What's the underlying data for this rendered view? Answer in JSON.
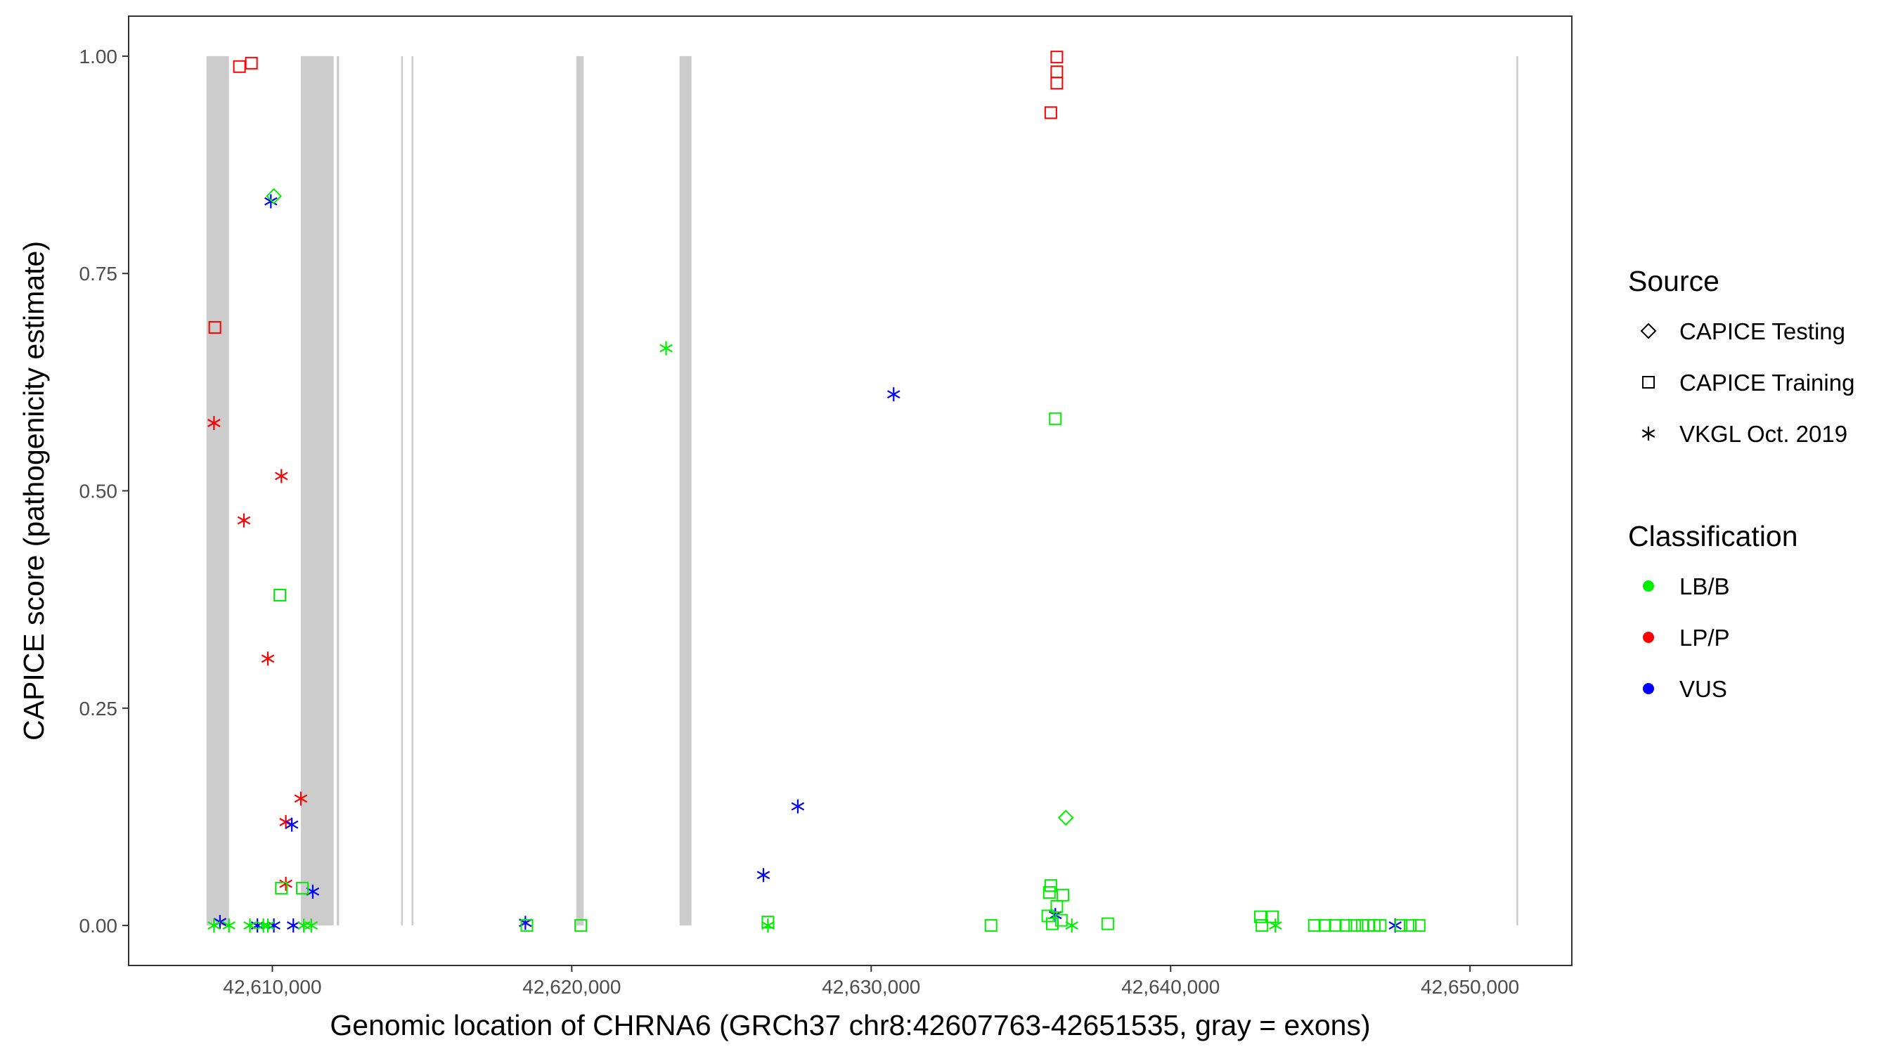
{
  "chart_data": {
    "type": "scatter",
    "xlabel": "Genomic location of CHRNA6 (GRCh37 chr8:42607763-42651535, gray = exons)",
    "ylabel": "CAPICE score (pathogenicity estimate)",
    "xlim": [
      42605200,
      42653400
    ],
    "ylim": [
      -0.046,
      1.046
    ],
    "x_ticks": [
      42610000,
      42620000,
      42630000,
      42640000,
      42650000
    ],
    "x_tick_labels": [
      "42,610,000",
      "42,620,000",
      "42,630,000",
      "42,640,000",
      "42,650,000"
    ],
    "y_ticks": [
      0,
      0.25,
      0.5,
      0.75,
      1
    ],
    "y_tick_labels": [
      "0.00",
      "0.25",
      "0.50",
      "0.75",
      "1.00"
    ],
    "grid": false,
    "exons": [
      [
        42607800,
        42608550
      ],
      [
        42610950,
        42612050
      ],
      [
        42612150,
        42612230
      ],
      [
        42614300,
        42614360
      ],
      [
        42614650,
        42614710
      ],
      [
        42620150,
        42620400
      ],
      [
        42623600,
        42624000
      ],
      [
        42651550,
        42651610
      ]
    ],
    "legends": [
      {
        "title": "Source",
        "placement": "right",
        "entries": [
          {
            "label": "CAPICE Testing",
            "shape": "diamond"
          },
          {
            "label": "CAPICE Training",
            "shape": "square"
          },
          {
            "label": "VKGL Oct. 2019",
            "shape": "asterisk"
          }
        ]
      },
      {
        "title": "Classification",
        "placement": "right",
        "entries": [
          {
            "label": "LB/B",
            "color": "#00ee00"
          },
          {
            "label": "LP/P",
            "color": "#ff0000"
          },
          {
            "label": "VUS",
            "color": "#0000ff"
          }
        ]
      }
    ],
    "colors": {
      "LB/B": "#00ee00",
      "LP/P": "#ff0000",
      "VUS": "#0000ff"
    },
    "points": [
      {
        "x": 42608900,
        "y": 0.988,
        "source": "CAPICE Training",
        "class": "LP/P"
      },
      {
        "x": 42609300,
        "y": 0.992,
        "source": "CAPICE Training",
        "class": "LP/P"
      },
      {
        "x": 42608080,
        "y": 0.688,
        "source": "CAPICE Training",
        "class": "LP/P"
      },
      {
        "x": 42636200,
        "y": 0.999,
        "source": "CAPICE Training",
        "class": "LP/P"
      },
      {
        "x": 42636200,
        "y": 0.982,
        "source": "CAPICE Training",
        "class": "LP/P"
      },
      {
        "x": 42636200,
        "y": 0.969,
        "source": "CAPICE Training",
        "class": "LP/P"
      },
      {
        "x": 42636000,
        "y": 0.935,
        "source": "CAPICE Training",
        "class": "LP/P"
      },
      {
        "x": 42608050,
        "y": 0.578,
        "source": "VKGL Oct. 2019",
        "class": "LP/P"
      },
      {
        "x": 42610300,
        "y": 0.517,
        "source": "VKGL Oct. 2019",
        "class": "LP/P"
      },
      {
        "x": 42609050,
        "y": 0.466,
        "source": "VKGL Oct. 2019",
        "class": "LP/P"
      },
      {
        "x": 42609850,
        "y": 0.307,
        "source": "VKGL Oct. 2019",
        "class": "LP/P"
      },
      {
        "x": 42610950,
        "y": 0.146,
        "source": "VKGL Oct. 2019",
        "class": "LP/P"
      },
      {
        "x": 42610450,
        "y": 0.119,
        "source": "VKGL Oct. 2019",
        "class": "LP/P"
      },
      {
        "x": 42610450,
        "y": 0.048,
        "source": "VKGL Oct. 2019",
        "class": "LP/P"
      },
      {
        "x": 42609950,
        "y": 0.833,
        "source": "VKGL Oct. 2019",
        "class": "VUS"
      },
      {
        "x": 42630750,
        "y": 0.611,
        "source": "VKGL Oct. 2019",
        "class": "VUS"
      },
      {
        "x": 42627550,
        "y": 0.137,
        "source": "VKGL Oct. 2019",
        "class": "VUS"
      },
      {
        "x": 42610650,
        "y": 0.116,
        "source": "VKGL Oct. 2019",
        "class": "VUS"
      },
      {
        "x": 42626400,
        "y": 0.058,
        "source": "VKGL Oct. 2019",
        "class": "VUS"
      },
      {
        "x": 42611350,
        "y": 0.039,
        "source": "VKGL Oct. 2019",
        "class": "VUS"
      },
      {
        "x": 42636150,
        "y": 0.012,
        "source": "VKGL Oct. 2019",
        "class": "VUS"
      },
      {
        "x": 42608250,
        "y": 0.004,
        "source": "VKGL Oct. 2019",
        "class": "VUS"
      },
      {
        "x": 42618450,
        "y": 0.003,
        "source": "VKGL Oct. 2019",
        "class": "VUS"
      },
      {
        "x": 42609500,
        "y": 0.0,
        "source": "VKGL Oct. 2019",
        "class": "VUS"
      },
      {
        "x": 42610050,
        "y": 0.0,
        "source": "VKGL Oct. 2019",
        "class": "VUS"
      },
      {
        "x": 42610700,
        "y": 0.0,
        "source": "VKGL Oct. 2019",
        "class": "VUS"
      },
      {
        "x": 42647500,
        "y": 0.0,
        "source": "VKGL Oct. 2019",
        "class": "VUS"
      },
      {
        "x": 42610050,
        "y": 0.839,
        "source": "CAPICE Testing",
        "class": "LB/B"
      },
      {
        "x": 42636500,
        "y": 0.124,
        "source": "CAPICE Testing",
        "class": "LB/B"
      },
      {
        "x": 42623150,
        "y": 0.664,
        "source": "VKGL Oct. 2019",
        "class": "LB/B"
      },
      {
        "x": 42608050,
        "y": 0.0,
        "source": "VKGL Oct. 2019",
        "class": "LB/B"
      },
      {
        "x": 42608550,
        "y": 0.0,
        "source": "VKGL Oct. 2019",
        "class": "LB/B"
      },
      {
        "x": 42609250,
        "y": 0.0,
        "source": "VKGL Oct. 2019",
        "class": "LB/B"
      },
      {
        "x": 42609700,
        "y": 0.0,
        "source": "VKGL Oct. 2019",
        "class": "LB/B"
      },
      {
        "x": 42609850,
        "y": 0.0,
        "source": "VKGL Oct. 2019",
        "class": "LB/B"
      },
      {
        "x": 42611050,
        "y": 0.0,
        "source": "VKGL Oct. 2019",
        "class": "LB/B"
      },
      {
        "x": 42611300,
        "y": 0.0,
        "source": "VKGL Oct. 2019",
        "class": "LB/B"
      },
      {
        "x": 42626550,
        "y": 0.0,
        "source": "VKGL Oct. 2019",
        "class": "LB/B"
      },
      {
        "x": 42636700,
        "y": 0.0,
        "source": "VKGL Oct. 2019",
        "class": "LB/B"
      },
      {
        "x": 42643500,
        "y": 0.0,
        "source": "VKGL Oct. 2019",
        "class": "LB/B"
      },
      {
        "x": 42636150,
        "y": 0.583,
        "source": "CAPICE Training",
        "class": "LB/B"
      },
      {
        "x": 42610250,
        "y": 0.38,
        "source": "CAPICE Training",
        "class": "LB/B"
      },
      {
        "x": 42610300,
        "y": 0.043,
        "source": "CAPICE Training",
        "class": "LB/B"
      },
      {
        "x": 42611000,
        "y": 0.043,
        "source": "CAPICE Training",
        "class": "LB/B"
      },
      {
        "x": 42636000,
        "y": 0.046,
        "source": "CAPICE Training",
        "class": "LB/B"
      },
      {
        "x": 42635950,
        "y": 0.038,
        "source": "CAPICE Training",
        "class": "LB/B"
      },
      {
        "x": 42636400,
        "y": 0.035,
        "source": "CAPICE Training",
        "class": "LB/B"
      },
      {
        "x": 42636200,
        "y": 0.022,
        "source": "CAPICE Training",
        "class": "LB/B"
      },
      {
        "x": 42635900,
        "y": 0.011,
        "source": "CAPICE Training",
        "class": "LB/B"
      },
      {
        "x": 42636350,
        "y": 0.006,
        "source": "CAPICE Training",
        "class": "LB/B"
      },
      {
        "x": 42636050,
        "y": 0.002,
        "source": "CAPICE Training",
        "class": "LB/B"
      },
      {
        "x": 42637900,
        "y": 0.002,
        "source": "CAPICE Training",
        "class": "LB/B"
      },
      {
        "x": 42618500,
        "y": 0.0,
        "source": "CAPICE Training",
        "class": "LB/B"
      },
      {
        "x": 42620300,
        "y": 0.0,
        "source": "CAPICE Training",
        "class": "LB/B"
      },
      {
        "x": 42626550,
        "y": 0.004,
        "source": "CAPICE Training",
        "class": "LB/B"
      },
      {
        "x": 42634000,
        "y": 0.0,
        "source": "CAPICE Training",
        "class": "LB/B"
      },
      {
        "x": 42643000,
        "y": 0.01,
        "source": "CAPICE Training",
        "class": "LB/B"
      },
      {
        "x": 42643050,
        "y": 0.0,
        "source": "CAPICE Training",
        "class": "LB/B"
      },
      {
        "x": 42643400,
        "y": 0.01,
        "source": "CAPICE Training",
        "class": "LB/B"
      },
      {
        "x": 42644800,
        "y": 0.0,
        "source": "CAPICE Training",
        "class": "LB/B"
      },
      {
        "x": 42645150,
        "y": 0.0,
        "source": "CAPICE Training",
        "class": "LB/B"
      },
      {
        "x": 42645500,
        "y": 0.0,
        "source": "CAPICE Training",
        "class": "LB/B"
      },
      {
        "x": 42645850,
        "y": 0.0,
        "source": "CAPICE Training",
        "class": "LB/B"
      },
      {
        "x": 42646150,
        "y": 0.0,
        "source": "CAPICE Training",
        "class": "LB/B"
      },
      {
        "x": 42646400,
        "y": 0.0,
        "source": "CAPICE Training",
        "class": "LB/B"
      },
      {
        "x": 42646600,
        "y": 0.0,
        "source": "CAPICE Training",
        "class": "LB/B"
      },
      {
        "x": 42646800,
        "y": 0.0,
        "source": "CAPICE Training",
        "class": "LB/B"
      },
      {
        "x": 42647000,
        "y": 0.0,
        "source": "CAPICE Training",
        "class": "LB/B"
      },
      {
        "x": 42647700,
        "y": 0.0,
        "source": "CAPICE Training",
        "class": "LB/B"
      },
      {
        "x": 42648000,
        "y": 0.0,
        "source": "CAPICE Training",
        "class": "LB/B"
      },
      {
        "x": 42648300,
        "y": 0.0,
        "source": "CAPICE Training",
        "class": "LB/B"
      }
    ]
  }
}
